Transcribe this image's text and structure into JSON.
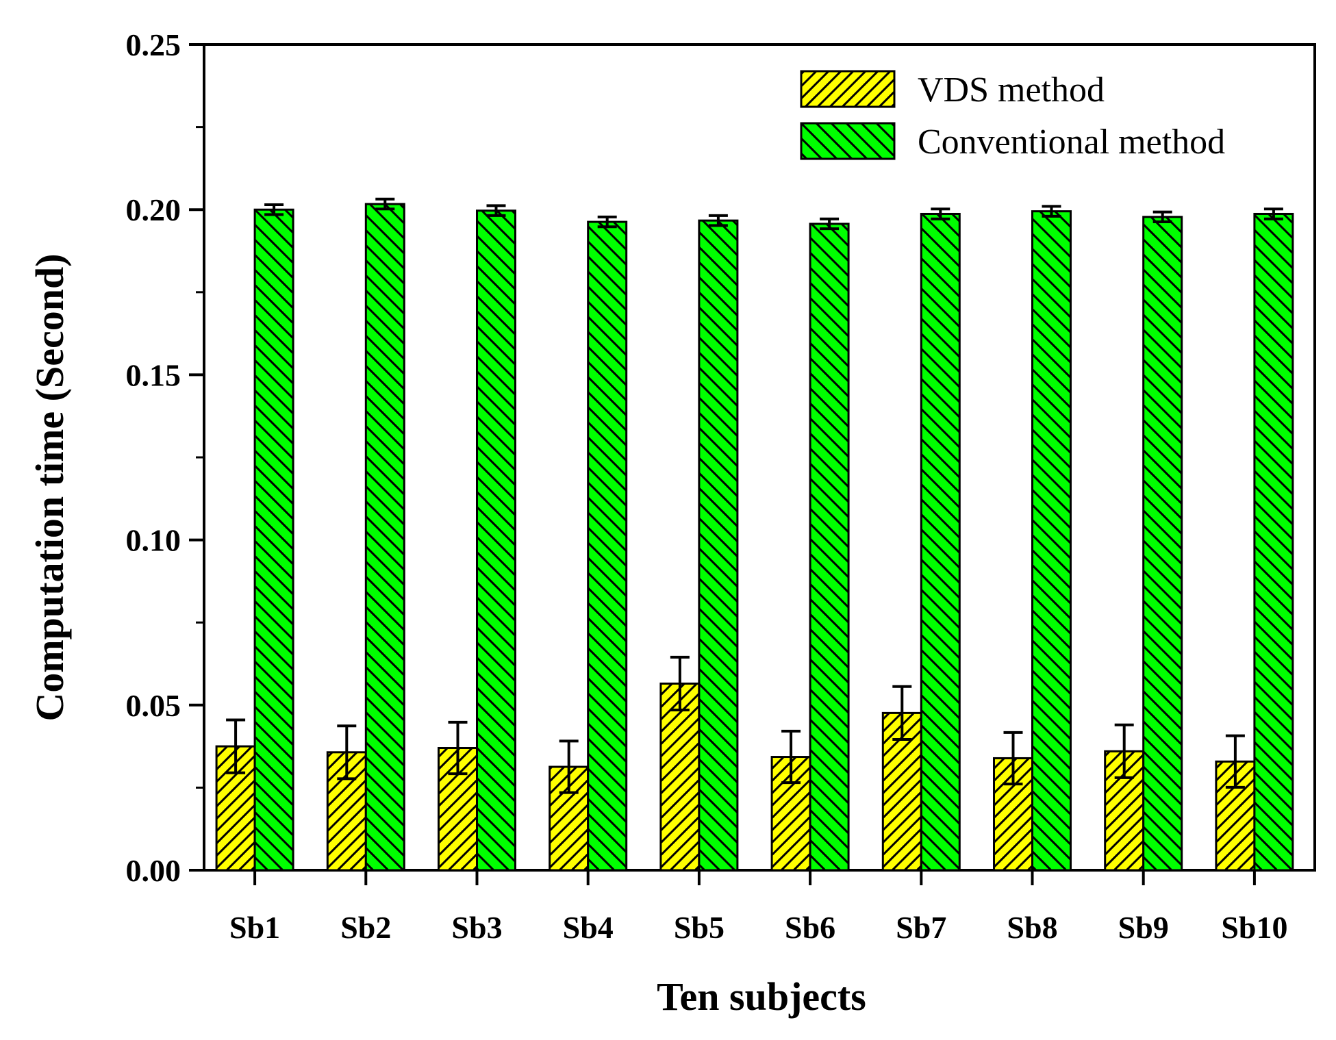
{
  "chart_data": {
    "type": "bar",
    "title": "",
    "xlabel": "Ten subjects",
    "ylabel": "Computation time (Second)",
    "ylim": [
      0,
      0.25
    ],
    "yticks": [
      "0.00",
      "0.05",
      "0.10",
      "0.15",
      "0.20",
      "0.25"
    ],
    "categories": [
      "Sb1",
      "Sb2",
      "Sb3",
      "Sb4",
      "Sb5",
      "Sb6",
      "Sb7",
      "Sb8",
      "Sb9",
      "Sb10"
    ],
    "legend_position": "top-right",
    "series": [
      {
        "name": "VDS method",
        "color": "#ffff00",
        "hatch": "forward-diagonal",
        "values": [
          0.0375,
          0.0357,
          0.037,
          0.0313,
          0.0565,
          0.0343,
          0.0476,
          0.0339,
          0.036,
          0.0329
        ],
        "errors": [
          0.008,
          0.008,
          0.0078,
          0.0078,
          0.008,
          0.0078,
          0.008,
          0.0078,
          0.008,
          0.0078
        ]
      },
      {
        "name": "Conventional method",
        "color": "#00ff00",
        "hatch": "backward-diagonal",
        "values": [
          0.2,
          0.2017,
          0.1997,
          0.1963,
          0.1967,
          0.1957,
          0.1987,
          0.1995,
          0.1978,
          0.1987
        ],
        "errors": [
          0.0015,
          0.0015,
          0.0015,
          0.0015,
          0.0015,
          0.0015,
          0.0015,
          0.0015,
          0.0015,
          0.0015
        ]
      }
    ]
  }
}
